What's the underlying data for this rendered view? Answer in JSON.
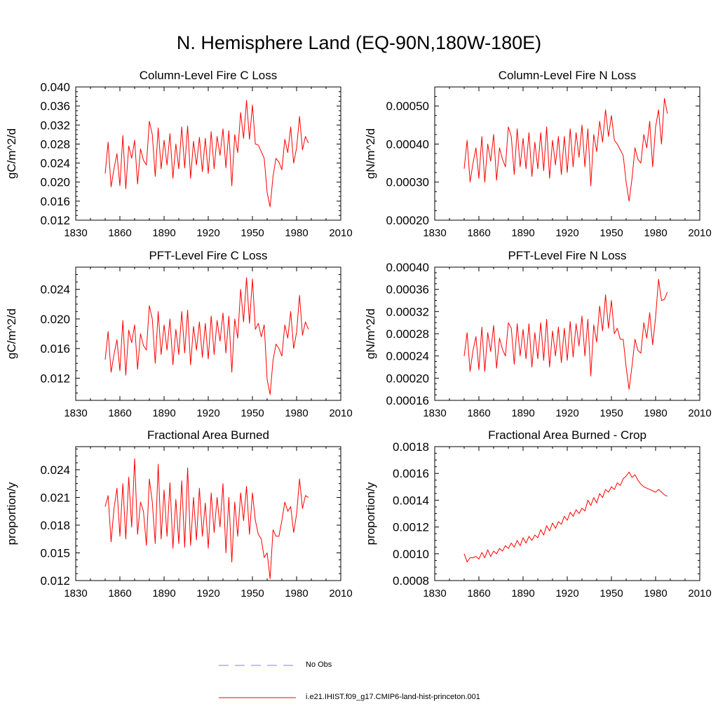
{
  "title": "N. Hemisphere Land (EQ-90N,180W-180E)",
  "legend": {
    "items": [
      {
        "label": "No Obs",
        "color": "#8080e0",
        "style": "dashed"
      },
      {
        "label": "i.e21.IHIST.f09_g17.CMIP6-land-hist-princeton.001",
        "color": "#ff0000",
        "style": "solid"
      }
    ]
  },
  "chart_data": [
    {
      "type": "line",
      "title": "Column-Level Fire C Loss",
      "xlabel": "",
      "ylabel": "gC/m^2/d",
      "xlim": [
        1830,
        2010
      ],
      "ylim": [
        0.012,
        0.04
      ],
      "xticks": [
        "1830",
        "1860",
        "1890",
        "1920",
        "1950",
        "1980",
        "2010"
      ],
      "yticks": [
        "0.012",
        "0.016",
        "0.020",
        "0.024",
        "0.028",
        "0.032",
        "0.036",
        "0.040"
      ],
      "color": "#ff0000",
      "x": [
        1850,
        1852,
        1854,
        1856,
        1858,
        1860,
        1862,
        1864,
        1866,
        1868,
        1870,
        1872,
        1874,
        1876,
        1878,
        1880,
        1882,
        1884,
        1886,
        1888,
        1890,
        1892,
        1894,
        1896,
        1898,
        1900,
        1902,
        1904,
        1906,
        1908,
        1910,
        1912,
        1914,
        1916,
        1918,
        1920,
        1922,
        1924,
        1926,
        1928,
        1930,
        1932,
        1934,
        1936,
        1938,
        1940,
        1942,
        1944,
        1946,
        1948,
        1950,
        1952,
        1954,
        1956,
        1958,
        1960,
        1962,
        1964,
        1966,
        1968,
        1970,
        1972,
        1974,
        1976,
        1978,
        1980,
        1982,
        1984,
        1986,
        1988
      ],
      "y": [
        0.0218,
        0.0284,
        0.019,
        0.0228,
        0.026,
        0.0192,
        0.0298,
        0.0186,
        0.0276,
        0.025,
        0.0288,
        0.0196,
        0.027,
        0.0246,
        0.0236,
        0.0328,
        0.03,
        0.0212,
        0.0314,
        0.0228,
        0.0288,
        0.0236,
        0.0302,
        0.0208,
        0.028,
        0.0228,
        0.0316,
        0.023,
        0.0318,
        0.0208,
        0.0286,
        0.0236,
        0.0294,
        0.0222,
        0.0292,
        0.0218,
        0.0306,
        0.0228,
        0.0296,
        0.0256,
        0.0312,
        0.023,
        0.0308,
        0.0192,
        0.03,
        0.0262,
        0.0346,
        0.0292,
        0.0372,
        0.029,
        0.0362,
        0.028,
        0.0278,
        0.0264,
        0.025,
        0.0178,
        0.0148,
        0.0212,
        0.025,
        0.0242,
        0.0226,
        0.029,
        0.0262,
        0.0316,
        0.024,
        0.0272,
        0.0338,
        0.0268,
        0.0296,
        0.0282
      ]
    },
    {
      "type": "line",
      "title": "Column-Level Fire N Loss",
      "xlabel": "",
      "ylabel": "gN/m^2/d",
      "xlim": [
        1830,
        2010
      ],
      "ylim": [
        0.0002,
        0.00055
      ],
      "xticks": [
        "1830",
        "1860",
        "1890",
        "1920",
        "1950",
        "1980",
        "2010"
      ],
      "yticks": [
        "0.00020",
        "0.00030",
        "0.00040",
        "0.00050"
      ],
      "color": "#ff0000",
      "x": [
        1850,
        1852,
        1854,
        1856,
        1858,
        1860,
        1862,
        1864,
        1866,
        1868,
        1870,
        1872,
        1874,
        1876,
        1878,
        1880,
        1882,
        1884,
        1886,
        1888,
        1890,
        1892,
        1894,
        1896,
        1898,
        1900,
        1902,
        1904,
        1906,
        1908,
        1910,
        1912,
        1914,
        1916,
        1918,
        1920,
        1922,
        1924,
        1926,
        1928,
        1930,
        1932,
        1934,
        1936,
        1938,
        1940,
        1942,
        1944,
        1946,
        1948,
        1950,
        1952,
        1954,
        1956,
        1958,
        1960,
        1962,
        1964,
        1966,
        1968,
        1970,
        1972,
        1974,
        1976,
        1978,
        1980,
        1982,
        1984,
        1986,
        1988
      ],
      "y": [
        0.000335,
        0.00041,
        0.0003,
        0.00035,
        0.00039,
        0.00031,
        0.00042,
        0.0003,
        0.0004,
        0.000355,
        0.000425,
        0.000305,
        0.00039,
        0.00036,
        0.00034,
        0.000445,
        0.00042,
        0.00032,
        0.00044,
        0.00034,
        0.000415,
        0.000335,
        0.00043,
        0.000315,
        0.000405,
        0.000335,
        0.00043,
        0.00033,
        0.000445,
        0.00031,
        0.00041,
        0.000345,
        0.00042,
        0.00032,
        0.00042,
        0.000325,
        0.00044,
        0.00034,
        0.00043,
        0.000365,
        0.00045,
        0.00034,
        0.00044,
        0.00029,
        0.000425,
        0.00038,
        0.00046,
        0.000405,
        0.00049,
        0.00042,
        0.000475,
        0.00041,
        0.0004,
        0.000385,
        0.00037,
        0.0003,
        0.00025,
        0.00031,
        0.00039,
        0.00036,
        0.00035,
        0.000425,
        0.00039,
        0.00046,
        0.00034,
        0.000445,
        0.00049,
        0.0004,
        0.00052,
        0.00048
      ]
    },
    {
      "type": "line",
      "title": "PFT-Level Fire C Loss",
      "xlabel": "",
      "ylabel": "gC/m^2/d",
      "xlim": [
        1830,
        2010
      ],
      "ylim": [
        0.009,
        0.027
      ],
      "xticks": [
        "1830",
        "1860",
        "1890",
        "1920",
        "1950",
        "1980",
        "2010"
      ],
      "yticks": [
        "0.012",
        "0.016",
        "0.020",
        "0.024"
      ],
      "color": "#ff0000",
      "x": [
        1850,
        1852,
        1854,
        1856,
        1858,
        1860,
        1862,
        1864,
        1866,
        1868,
        1870,
        1872,
        1874,
        1876,
        1878,
        1880,
        1882,
        1884,
        1886,
        1888,
        1890,
        1892,
        1894,
        1896,
        1898,
        1900,
        1902,
        1904,
        1906,
        1908,
        1910,
        1912,
        1914,
        1916,
        1918,
        1920,
        1922,
        1924,
        1926,
        1928,
        1930,
        1932,
        1934,
        1936,
        1938,
        1940,
        1942,
        1944,
        1946,
        1948,
        1950,
        1952,
        1954,
        1956,
        1958,
        1960,
        1962,
        1964,
        1966,
        1968,
        1970,
        1972,
        1974,
        1976,
        1978,
        1980,
        1982,
        1984,
        1986,
        1988
      ],
      "y": [
        0.0145,
        0.0183,
        0.0128,
        0.0152,
        0.0172,
        0.013,
        0.0198,
        0.0124,
        0.0185,
        0.0168,
        0.0192,
        0.0132,
        0.018,
        0.0164,
        0.0158,
        0.0218,
        0.02,
        0.014,
        0.021,
        0.0152,
        0.0192,
        0.0158,
        0.02,
        0.0138,
        0.0186,
        0.0152,
        0.021,
        0.0154,
        0.0212,
        0.0138,
        0.019,
        0.0158,
        0.0196,
        0.0148,
        0.0194,
        0.0146,
        0.0204,
        0.0152,
        0.0198,
        0.017,
        0.0208,
        0.0154,
        0.0204,
        0.0128,
        0.02,
        0.0174,
        0.024,
        0.0196,
        0.0256,
        0.0194,
        0.0254,
        0.0186,
        0.0194,
        0.0176,
        0.0192,
        0.0118,
        0.0098,
        0.0144,
        0.0166,
        0.016,
        0.015,
        0.0192,
        0.0174,
        0.021,
        0.016,
        0.0182,
        0.0232,
        0.0178,
        0.0196,
        0.0186
      ]
    },
    {
      "type": "line",
      "title": "PFT-Level Fire N Loss",
      "xlabel": "",
      "ylabel": "gN/m^2/d",
      "xlim": [
        1830,
        2010
      ],
      "ylim": [
        0.00016,
        0.0004
      ],
      "xticks": [
        "1830",
        "1860",
        "1890",
        "1920",
        "1950",
        "1980",
        "2010"
      ],
      "yticks": [
        "0.00016",
        "0.00020",
        "0.00024",
        "0.00028",
        "0.00032",
        "0.00036",
        "0.00040"
      ],
      "color": "#ff0000",
      "x": [
        1850,
        1852,
        1854,
        1856,
        1858,
        1860,
        1862,
        1864,
        1866,
        1868,
        1870,
        1872,
        1874,
        1876,
        1878,
        1880,
        1882,
        1884,
        1886,
        1888,
        1890,
        1892,
        1894,
        1896,
        1898,
        1900,
        1902,
        1904,
        1906,
        1908,
        1910,
        1912,
        1914,
        1916,
        1918,
        1920,
        1922,
        1924,
        1926,
        1928,
        1930,
        1932,
        1934,
        1936,
        1938,
        1940,
        1942,
        1944,
        1946,
        1948,
        1950,
        1952,
        1954,
        1956,
        1958,
        1960,
        1962,
        1964,
        1966,
        1968,
        1970,
        1972,
        1974,
        1976,
        1978,
        1980,
        1982,
        1984,
        1986,
        1988
      ],
      "y": [
        0.00024,
        0.000282,
        0.000212,
        0.00025,
        0.000275,
        0.000215,
        0.000292,
        0.000212,
        0.000282,
        0.000248,
        0.000295,
        0.000218,
        0.000272,
        0.000252,
        0.00024,
        0.0003,
        0.00029,
        0.000225,
        0.000298,
        0.00024,
        0.000288,
        0.000235,
        0.000298,
        0.00022,
        0.000282,
        0.000235,
        0.0003,
        0.000232,
        0.000306,
        0.00022,
        0.000285,
        0.00024,
        0.000292,
        0.000228,
        0.00029,
        0.000232,
        0.000302,
        0.000238,
        0.000298,
        0.000258,
        0.000312,
        0.00024,
        0.000306,
        0.000204,
        0.000296,
        0.000265,
        0.00033,
        0.000285,
        0.00035,
        0.00029,
        0.00034,
        0.00028,
        0.00029,
        0.00027,
        0.00027,
        0.00022,
        0.00018,
        0.000222,
        0.00027,
        0.00025,
        0.000245,
        0.0003,
        0.000272,
        0.000318,
        0.00026,
        0.00031,
        0.000378,
        0.00034,
        0.000342,
        0.000355
      ]
    },
    {
      "type": "line",
      "title": "Fractional Area Burned",
      "xlabel": "",
      "ylabel": "proportion/y",
      "xlim": [
        1830,
        2010
      ],
      "ylim": [
        0.012,
        0.0265
      ],
      "xticks": [
        "1830",
        "1860",
        "1890",
        "1920",
        "1950",
        "1980",
        "2010"
      ],
      "yticks": [
        "0.012",
        "0.015",
        "0.018",
        "0.021",
        "0.024"
      ],
      "color": "#ff0000",
      "x": [
        1850,
        1852,
        1854,
        1856,
        1858,
        1860,
        1862,
        1864,
        1866,
        1868,
        1870,
        1872,
        1874,
        1876,
        1878,
        1880,
        1882,
        1884,
        1886,
        1888,
        1890,
        1892,
        1894,
        1896,
        1898,
        1900,
        1902,
        1904,
        1906,
        1908,
        1910,
        1912,
        1914,
        1916,
        1918,
        1920,
        1922,
        1924,
        1926,
        1928,
        1930,
        1932,
        1934,
        1936,
        1938,
        1940,
        1942,
        1944,
        1946,
        1948,
        1950,
        1952,
        1954,
        1956,
        1958,
        1960,
        1962,
        1964,
        1966,
        1968,
        1970,
        1972,
        1974,
        1976,
        1978,
        1980,
        1982,
        1984,
        1986,
        1988
      ],
      "y": [
        0.02,
        0.0212,
        0.0162,
        0.0198,
        0.022,
        0.0168,
        0.0225,
        0.0165,
        0.0232,
        0.0178,
        0.0252,
        0.017,
        0.0205,
        0.0195,
        0.0158,
        0.023,
        0.0205,
        0.016,
        0.0246,
        0.0165,
        0.0218,
        0.0168,
        0.0226,
        0.0155,
        0.0208,
        0.016,
        0.0228,
        0.0156,
        0.0242,
        0.0158,
        0.021,
        0.0164,
        0.022,
        0.0168,
        0.0204,
        0.0155,
        0.0215,
        0.0172,
        0.021,
        0.0178,
        0.0225,
        0.015,
        0.021,
        0.014,
        0.0205,
        0.0168,
        0.0215,
        0.0185,
        0.0222,
        0.017,
        0.0215,
        0.0185,
        0.017,
        0.0165,
        0.0145,
        0.015,
        0.0122,
        0.0175,
        0.0168,
        0.0168,
        0.0185,
        0.0205,
        0.0195,
        0.02,
        0.0172,
        0.0192,
        0.023,
        0.0198,
        0.0212,
        0.021
      ]
    },
    {
      "type": "line",
      "title": "Fractional Area Burned - Crop",
      "xlabel": "",
      "ylabel": "proportion/y",
      "xlim": [
        1830,
        2010
      ],
      "ylim": [
        0.0008,
        0.0018
      ],
      "xticks": [
        "1830",
        "1860",
        "1890",
        "1920",
        "1950",
        "1980",
        "2010"
      ],
      "yticks": [
        "0.0008",
        "0.0010",
        "0.0012",
        "0.0014",
        "0.0016",
        "0.0018"
      ],
      "color": "#ff0000",
      "x": [
        1850,
        1852,
        1854,
        1856,
        1858,
        1860,
        1862,
        1864,
        1866,
        1868,
        1870,
        1872,
        1874,
        1876,
        1878,
        1880,
        1882,
        1884,
        1886,
        1888,
        1890,
        1892,
        1894,
        1896,
        1898,
        1900,
        1902,
        1904,
        1906,
        1908,
        1910,
        1912,
        1914,
        1916,
        1918,
        1920,
        1922,
        1924,
        1926,
        1928,
        1930,
        1932,
        1934,
        1936,
        1938,
        1940,
        1942,
        1944,
        1946,
        1948,
        1950,
        1952,
        1954,
        1956,
        1958,
        1960,
        1962,
        1964,
        1966,
        1968,
        1970,
        1972,
        1974,
        1976,
        1978,
        1980,
        1982,
        1984,
        1986,
        1988
      ],
      "y": [
        0.001,
        0.00094,
        0.00097,
        0.00097,
        0.00098,
        0.00096,
        0.00101,
        0.00097,
        0.00103,
        0.00098,
        0.00102,
        0.001,
        0.00104,
        0.00102,
        0.00106,
        0.00104,
        0.00108,
        0.00105,
        0.0011,
        0.00106,
        0.00112,
        0.00108,
        0.00113,
        0.0011,
        0.00114,
        0.00112,
        0.00118,
        0.00114,
        0.00121,
        0.00117,
        0.00123,
        0.00119,
        0.00124,
        0.00122,
        0.00128,
        0.00125,
        0.00131,
        0.00128,
        0.00133,
        0.0013,
        0.00134,
        0.00132,
        0.0014,
        0.00136,
        0.00142,
        0.00138,
        0.00145,
        0.00142,
        0.00148,
        0.00146,
        0.0015,
        0.00148,
        0.00153,
        0.00151,
        0.00156,
        0.00158,
        0.00161,
        0.00157,
        0.00159,
        0.00155,
        0.00152,
        0.0015,
        0.00149,
        0.00148,
        0.00147,
        0.00146,
        0.00148,
        0.00146,
        0.00144,
        0.00143
      ]
    }
  ]
}
